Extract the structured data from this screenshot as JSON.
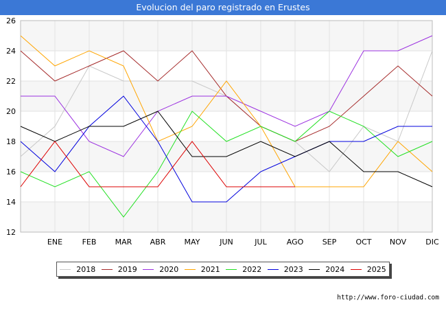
{
  "chart_data": {
    "type": "line",
    "title": "Evolucion del paro registrado en Erustes",
    "categories": [
      "",
      "ENE",
      "FEB",
      "MAR",
      "ABR",
      "MAY",
      "JUN",
      "JUL",
      "AGO",
      "SEP",
      "OCT",
      "NOV",
      "DIC"
    ],
    "ylim": [
      12,
      26
    ],
    "yticks": [
      12,
      14,
      16,
      18,
      20,
      22,
      24,
      26
    ],
    "grid": true,
    "legend_position": "bottom",
    "series": [
      {
        "name": "2018",
        "color": "#c8c8c8",
        "values": [
          17,
          19,
          23,
          22,
          22,
          22,
          21,
          19,
          18,
          16,
          19,
          18,
          24
        ]
      },
      {
        "name": "2019",
        "color": "#a52a2a",
        "values": [
          24,
          22,
          23,
          24,
          22,
          24,
          21,
          19,
          18,
          19,
          21,
          23,
          21
        ]
      },
      {
        "name": "2020",
        "color": "#9b30e0",
        "values": [
          21,
          21,
          18,
          17,
          20,
          21,
          21,
          20,
          19,
          20,
          24,
          24,
          25
        ]
      },
      {
        "name": "2021",
        "color": "#ffa500",
        "values": [
          25,
          23,
          24,
          23,
          18,
          19,
          22,
          19,
          15,
          15,
          15,
          18,
          16
        ]
      },
      {
        "name": "2022",
        "color": "#22e022",
        "values": [
          16,
          15,
          16,
          13,
          16,
          20,
          18,
          19,
          18,
          20,
          19,
          17,
          18
        ]
      },
      {
        "name": "2023",
        "color": "#0000dd",
        "values": [
          18,
          16,
          19,
          21,
          18,
          14,
          14,
          16,
          17,
          18,
          18,
          19,
          19
        ]
      },
      {
        "name": "2024",
        "color": "#000000",
        "values": [
          19,
          18,
          19,
          19,
          20,
          17,
          17,
          18,
          17,
          18,
          16,
          16,
          15
        ]
      },
      {
        "name": "2025",
        "color": "#dd0000",
        "values": [
          15,
          18,
          15,
          15,
          15,
          18,
          15,
          15,
          15,
          null,
          null,
          null,
          null
        ]
      }
    ]
  },
  "source": "http://www.foro-ciudad.com"
}
